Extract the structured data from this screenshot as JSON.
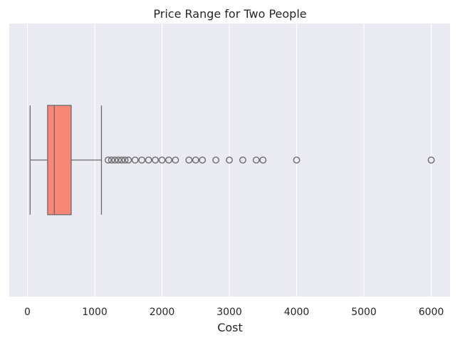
{
  "chart_data": {
    "type": "boxplot",
    "orientation": "horizontal",
    "title": "Price Range for Two People",
    "xlabel": "Cost",
    "ylabel": "",
    "xlim": [
      -270,
      6280
    ],
    "xticks": [
      0,
      1000,
      2000,
      3000,
      4000,
      5000,
      6000
    ],
    "xtick_labels": [
      "0",
      "1000",
      "2000",
      "3000",
      "4000",
      "5000",
      "6000"
    ],
    "grid": true,
    "box": {
      "whisker_low": 40,
      "q1": 300,
      "median": 400,
      "q3": 650,
      "whisker_high": 1100,
      "color": "#fa8775"
    },
    "outliers": [
      1200,
      1250,
      1300,
      1350,
      1400,
      1450,
      1500,
      1600,
      1700,
      1800,
      1900,
      2000,
      2100,
      2200,
      2400,
      2500,
      2600,
      2800,
      3000,
      3200,
      3400,
      3500,
      4000,
      6000
    ],
    "colors": {
      "plot_background": "#eaeaf2",
      "grid": "#ffffff",
      "lines": "#6a6a6a",
      "text": "#262626"
    }
  }
}
